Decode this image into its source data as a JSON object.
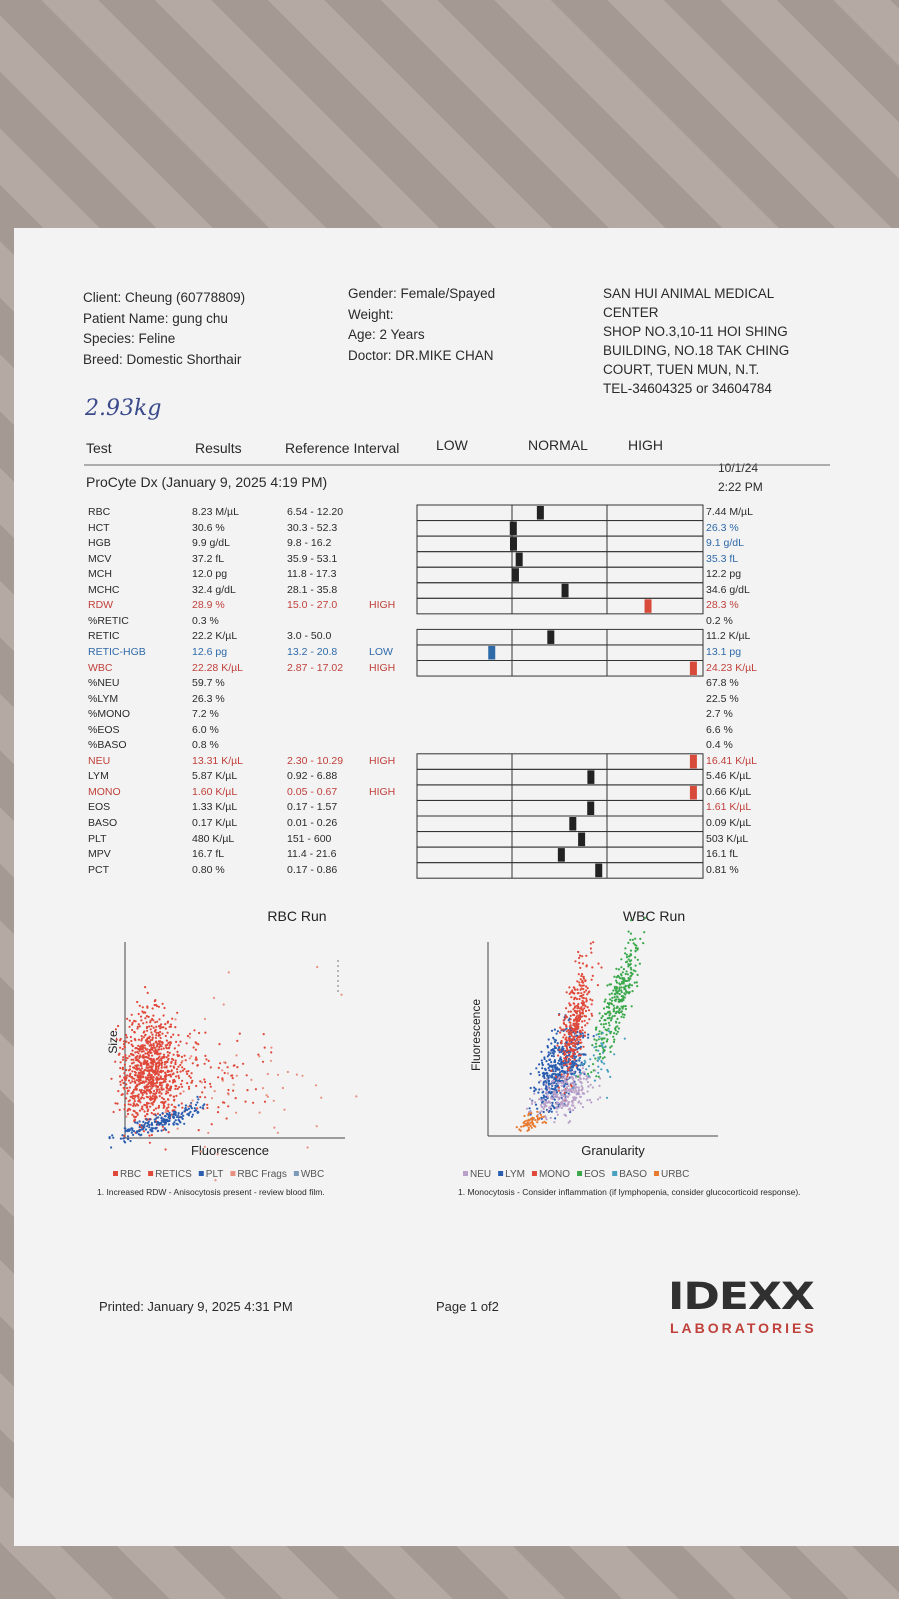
{
  "header": {
    "client": [
      "Client: Cheung (60778809)",
      "Patient Name: gung chu",
      "Species: Feline",
      "Breed: Domestic Shorthair"
    ],
    "visit": [
      "Gender: Female/Spayed",
      "Weight:",
      "Age: 2 Years",
      "Doctor: DR.MIKE CHAN"
    ],
    "clinic": [
      "SAN HUI ANIMAL MEDICAL",
      "CENTER",
      "SHOP NO.3,10-11 HOI SHING",
      "BUILDING, NO.18 TAK CHING",
      "COURT, TUEN MUN, N.T.",
      "TEL-34604325 or 34604784"
    ],
    "handwritten_weight": "2.93kg"
  },
  "table": {
    "columns": [
      "Test",
      "Results",
      "Reference Interval",
      "LOW",
      "NORMAL",
      "HIGH"
    ],
    "run_title": "ProCyte Dx (January 9, 2025 4:19 PM)",
    "previous_date": "10/1/24",
    "previous_time": "2:22 PM",
    "rows": [
      {
        "test": "RBC",
        "result": "8.23 M/µL",
        "range": "6.54 - 12.20",
        "previous": "7.44 M/µL"
      },
      {
        "test": "HCT",
        "result": "30.6 %",
        "range": "30.3 - 52.3",
        "previous": "26.3 %",
        "previous_color": "#2f6aa8"
      },
      {
        "test": "HGB",
        "result": "9.9 g/dL",
        "range": "9.8 - 16.2",
        "previous": "9.1 g/dL",
        "previous_color": "#2f6aa8"
      },
      {
        "test": "MCV",
        "result": "37.2 fL",
        "range": "35.9 - 53.1",
        "previous": "35.3 fL",
        "previous_color": "#2f6aa8"
      },
      {
        "test": "MCH",
        "result": "12.0 pg",
        "range": "11.8 - 17.3",
        "previous": "12.2 pg"
      },
      {
        "test": "MCHC",
        "result": "32.4 g/dL",
        "range": "28.1 - 35.8",
        "previous": "34.6 g/dL"
      },
      {
        "test": "RDW",
        "result": "28.9 %",
        "range": "15.0 - 27.0",
        "flag": "HIGH",
        "previous": "28.3 %",
        "previous_color": "#c0403a"
      },
      {
        "test": "%RETIC",
        "result": "0.3 %",
        "previous": "0.2 %"
      },
      {
        "test": "RETIC",
        "result": "22.2 K/µL",
        "range": "3.0 - 50.0",
        "previous": "11.2 K/µL"
      },
      {
        "test": "RETIC-HGB",
        "result": "12.6 pg",
        "range": "13.2 - 20.8",
        "flag": "LOW",
        "previous": "13.1 pg",
        "previous_color": "#2f6aa8"
      },
      {
        "test": "WBC",
        "result": "22.28 K/µL",
        "range": "2.87 - 17.02",
        "flag": "HIGH",
        "previous": "24.23 K/µL",
        "previous_color": "#c0403a"
      },
      {
        "test": "%NEU",
        "result": "59.7 %",
        "previous": "67.8 %"
      },
      {
        "test": "%LYM",
        "result": "26.3 %",
        "previous": "22.5 %"
      },
      {
        "test": "%MONO",
        "result": "7.2 %",
        "previous": "2.7 %"
      },
      {
        "test": "%EOS",
        "result": "6.0 %",
        "previous": "6.6 %"
      },
      {
        "test": "%BASO",
        "result": "0.8 %",
        "previous": "0.4 %"
      },
      {
        "test": "NEU",
        "result": "13.31 K/µL",
        "range": "2.30 - 10.29",
        "flag": "HIGH",
        "previous": "16.41 K/µL",
        "previous_color": "#c0403a"
      },
      {
        "test": "LYM",
        "result": "5.87 K/µL",
        "range": "0.92 - 6.88",
        "previous": "5.46 K/µL"
      },
      {
        "test": "MONO",
        "result": "1.60 K/µL",
        "range": "0.05 - 0.67",
        "flag": "HIGH",
        "previous": "0.66 K/µL"
      },
      {
        "test": "EOS",
        "result": "1.33 K/µL",
        "range": "0.17 - 1.57",
        "previous": "1.61 K/µL",
        "previous_color": "#c0403a"
      },
      {
        "test": "BASO",
        "result": "0.17 K/µL",
        "range": "0.01 - 0.26",
        "previous": "0.09 K/µL"
      },
      {
        "test": "PLT",
        "result": "480 K/µL",
        "range": "151 - 600",
        "previous": "503 K/µL"
      },
      {
        "test": "MPV",
        "result": "16.7 fL",
        "range": "11.4 - 21.6",
        "previous": "16.1 fL"
      },
      {
        "test": "PCT",
        "result": "0.80 %",
        "range": "0.17 - 0.86",
        "previous": "0.81 %"
      }
    ]
  },
  "plots": [
    {
      "title": "RBC Run",
      "x_label": "Fluorescence",
      "y_label": "Size",
      "legend": [
        {
          "name": "RBC",
          "color": "#e0483a"
        },
        {
          "name": "RETICS",
          "color": "#e0483a"
        },
        {
          "name": "PLT",
          "color": "#2a5db0"
        },
        {
          "name": "RBC Frags",
          "color": "#e89080"
        },
        {
          "name": "WBC",
          "color": "#7a9ab8"
        }
      ],
      "note": "1. Increased RDW - Anisocytosis present - review blood film."
    },
    {
      "title": "WBC Run",
      "x_label": "Granularity",
      "y_label": "Fluorescence",
      "legend": [
        {
          "name": "NEU",
          "color": "#b9a0c8"
        },
        {
          "name": "LYM",
          "color": "#2a5db0"
        },
        {
          "name": "MONO",
          "color": "#e0483a"
        },
        {
          "name": "EOS",
          "color": "#3aa84a"
        },
        {
          "name": "BASO",
          "color": "#4aa0c0"
        },
        {
          "name": "URBC",
          "color": "#e87a30"
        }
      ],
      "note": "1. Monocytosis - Consider inflammation (if lymphopenia, consider glucocorticoid response)."
    }
  ],
  "footer": {
    "printed": "Printed: January 9, 2025 4:31 PM",
    "page": "Page 1 of2",
    "logo": "IDEXX",
    "logo_sub": "LABORATORIES"
  }
}
